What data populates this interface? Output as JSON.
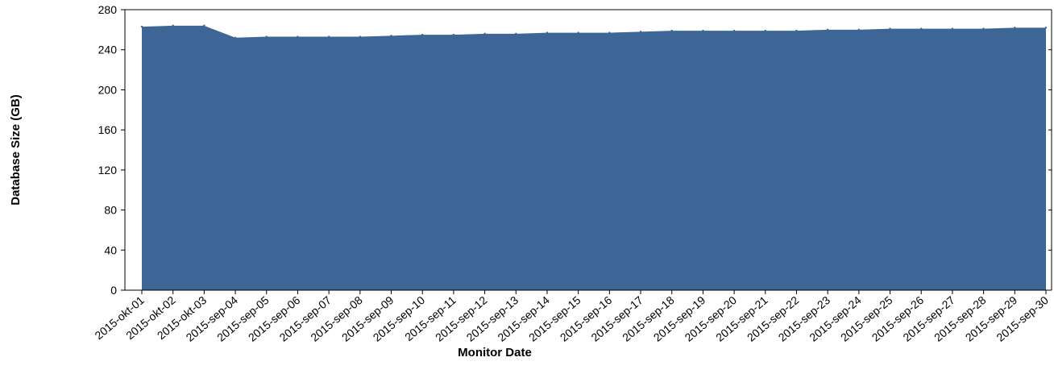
{
  "chart_data": {
    "type": "area",
    "title": "",
    "xlabel": "Monitor Date",
    "ylabel": "Database Size (GB)",
    "ylim": [
      0,
      280
    ],
    "yticks": [
      0,
      40,
      80,
      120,
      160,
      200,
      240,
      280
    ],
    "grid": false,
    "legend": "none",
    "colors": {
      "fill": "#3d6696",
      "axis": "#000000"
    },
    "categories": [
      "2015-okt-01",
      "2015-okt-02",
      "2015-okt-03",
      "2015-sep-04",
      "2015-sep-05",
      "2015-sep-06",
      "2015-sep-07",
      "2015-sep-08",
      "2015-sep-09",
      "2015-sep-10",
      "2015-sep-11",
      "2015-sep-12",
      "2015-sep-13",
      "2015-sep-14",
      "2015-sep-15",
      "2015-sep-16",
      "2015-sep-17",
      "2015-sep-18",
      "2015-sep-19",
      "2015-sep-20",
      "2015-sep-21",
      "2015-sep-22",
      "2015-sep-23",
      "2015-sep-24",
      "2015-sep-25",
      "2015-sep-26",
      "2015-sep-27",
      "2015-sep-28",
      "2015-sep-29",
      "2015-sep-30"
    ],
    "series": [
      {
        "values": [
          263,
          264,
          264,
          252,
          253,
          253,
          253,
          253,
          254,
          255,
          255,
          256,
          256,
          257,
          257,
          257,
          258,
          259,
          259,
          259,
          259,
          259,
          260,
          260,
          261,
          261,
          261,
          261,
          262,
          262
        ]
      }
    ]
  }
}
